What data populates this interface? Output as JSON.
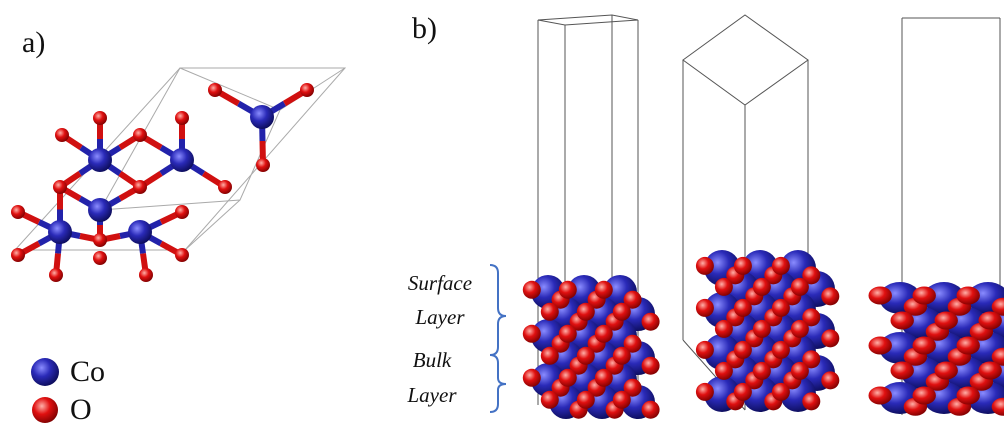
{
  "panel_a": {
    "label": "a)"
  },
  "panel_b": {
    "label": "b)"
  },
  "legend": [
    {
      "label": "Co"
    },
    {
      "label": "O"
    }
  ],
  "layers": [
    {
      "lines": [
        "Surface",
        "Layer"
      ]
    },
    {
      "lines": [
        "Bulk",
        "Layer"
      ]
    }
  ]
}
